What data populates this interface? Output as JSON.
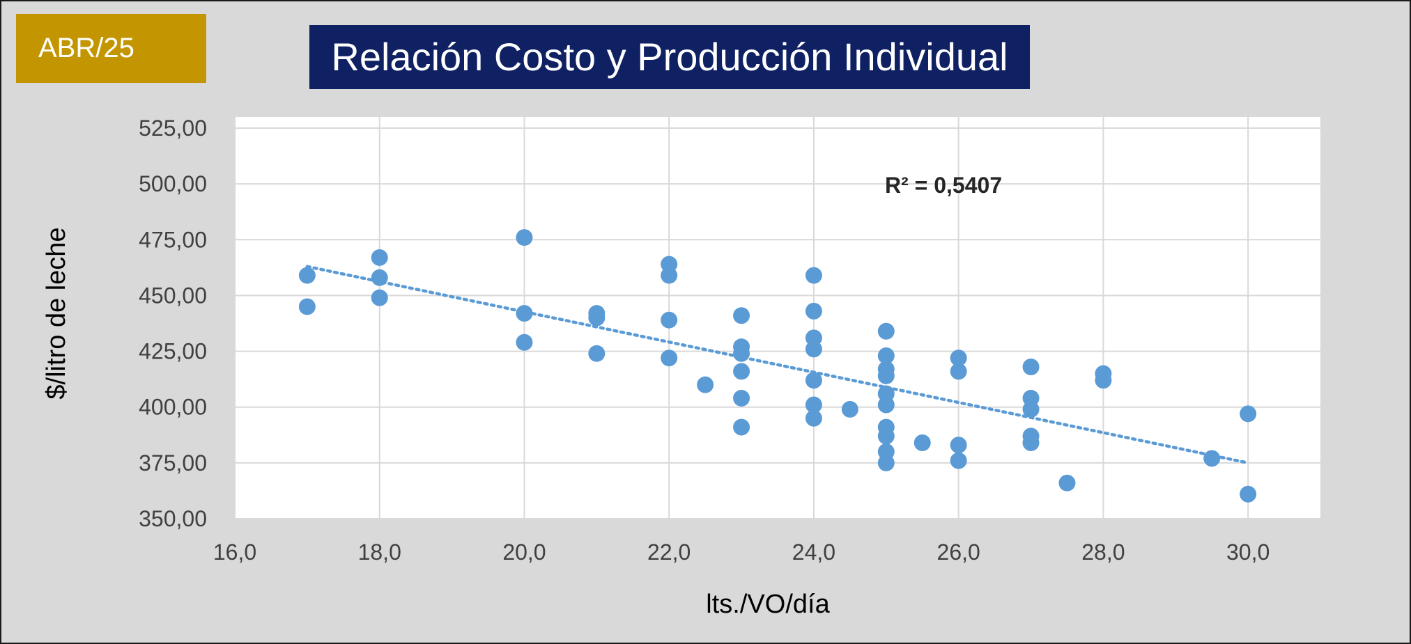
{
  "header": {
    "period": "ABR/25",
    "title": "Relación Costo y Producción Individual"
  },
  "colors": {
    "badge": "#c39500",
    "title_bg": "#0f2163",
    "point": "#5b9bd5",
    "trendline": "#5b9bd5",
    "plot_bg": "#ffffff",
    "grid": "#d9d9d9"
  },
  "chart_data": {
    "type": "scatter",
    "title": "Relación Costo y Producción Individual",
    "xlabel": "lts./VO/día",
    "ylabel": "$/litro de leche",
    "xlim": [
      16,
      31
    ],
    "ylim": [
      350,
      530
    ],
    "xticks": [
      16,
      18,
      20,
      22,
      24,
      26,
      28,
      30
    ],
    "xtick_labels": [
      "16,0",
      "18,0",
      "20,0",
      "22,0",
      "24,0",
      "26,0",
      "28,0",
      "30,0"
    ],
    "yticks": [
      350,
      375,
      400,
      425,
      450,
      475,
      500,
      525
    ],
    "ytick_labels": [
      "350,00",
      "375,00",
      "400,00",
      "425,00",
      "450,00",
      "475,00",
      "500,00",
      "525,00"
    ],
    "grid": true,
    "annotation": "R² = 0,5407",
    "trendline": {
      "style": "dotted",
      "from": [
        17,
        463
      ],
      "to": [
        30,
        375
      ]
    },
    "points": [
      [
        17,
        459
      ],
      [
        17,
        445
      ],
      [
        18,
        467
      ],
      [
        18,
        458
      ],
      [
        18,
        449
      ],
      [
        20,
        476
      ],
      [
        20,
        442
      ],
      [
        20,
        429
      ],
      [
        21,
        442
      ],
      [
        21,
        440
      ],
      [
        21,
        424
      ],
      [
        22,
        464
      ],
      [
        22,
        459
      ],
      [
        22,
        439
      ],
      [
        22,
        422
      ],
      [
        22.5,
        410
      ],
      [
        23,
        441
      ],
      [
        23,
        427
      ],
      [
        23,
        424
      ],
      [
        23,
        416
      ],
      [
        23,
        404
      ],
      [
        23,
        391
      ],
      [
        24,
        459
      ],
      [
        24,
        443
      ],
      [
        24,
        431
      ],
      [
        24,
        426
      ],
      [
        24,
        412
      ],
      [
        24,
        401
      ],
      [
        24,
        395
      ],
      [
        24.5,
        399
      ],
      [
        25,
        434
      ],
      [
        25,
        423
      ],
      [
        25,
        417
      ],
      [
        25,
        414
      ],
      [
        25,
        406
      ],
      [
        25,
        401
      ],
      [
        25,
        391
      ],
      [
        25,
        387
      ],
      [
        25,
        380
      ],
      [
        25,
        375
      ],
      [
        25.5,
        384
      ],
      [
        26,
        422
      ],
      [
        26,
        416
      ],
      [
        26,
        383
      ],
      [
        26,
        376
      ],
      [
        27,
        418
      ],
      [
        27,
        404
      ],
      [
        27,
        399
      ],
      [
        27,
        387
      ],
      [
        27,
        384
      ],
      [
        27.5,
        366
      ],
      [
        28,
        415
      ],
      [
        28,
        412
      ],
      [
        29.5,
        377
      ],
      [
        30,
        397
      ],
      [
        30,
        361
      ]
    ]
  }
}
